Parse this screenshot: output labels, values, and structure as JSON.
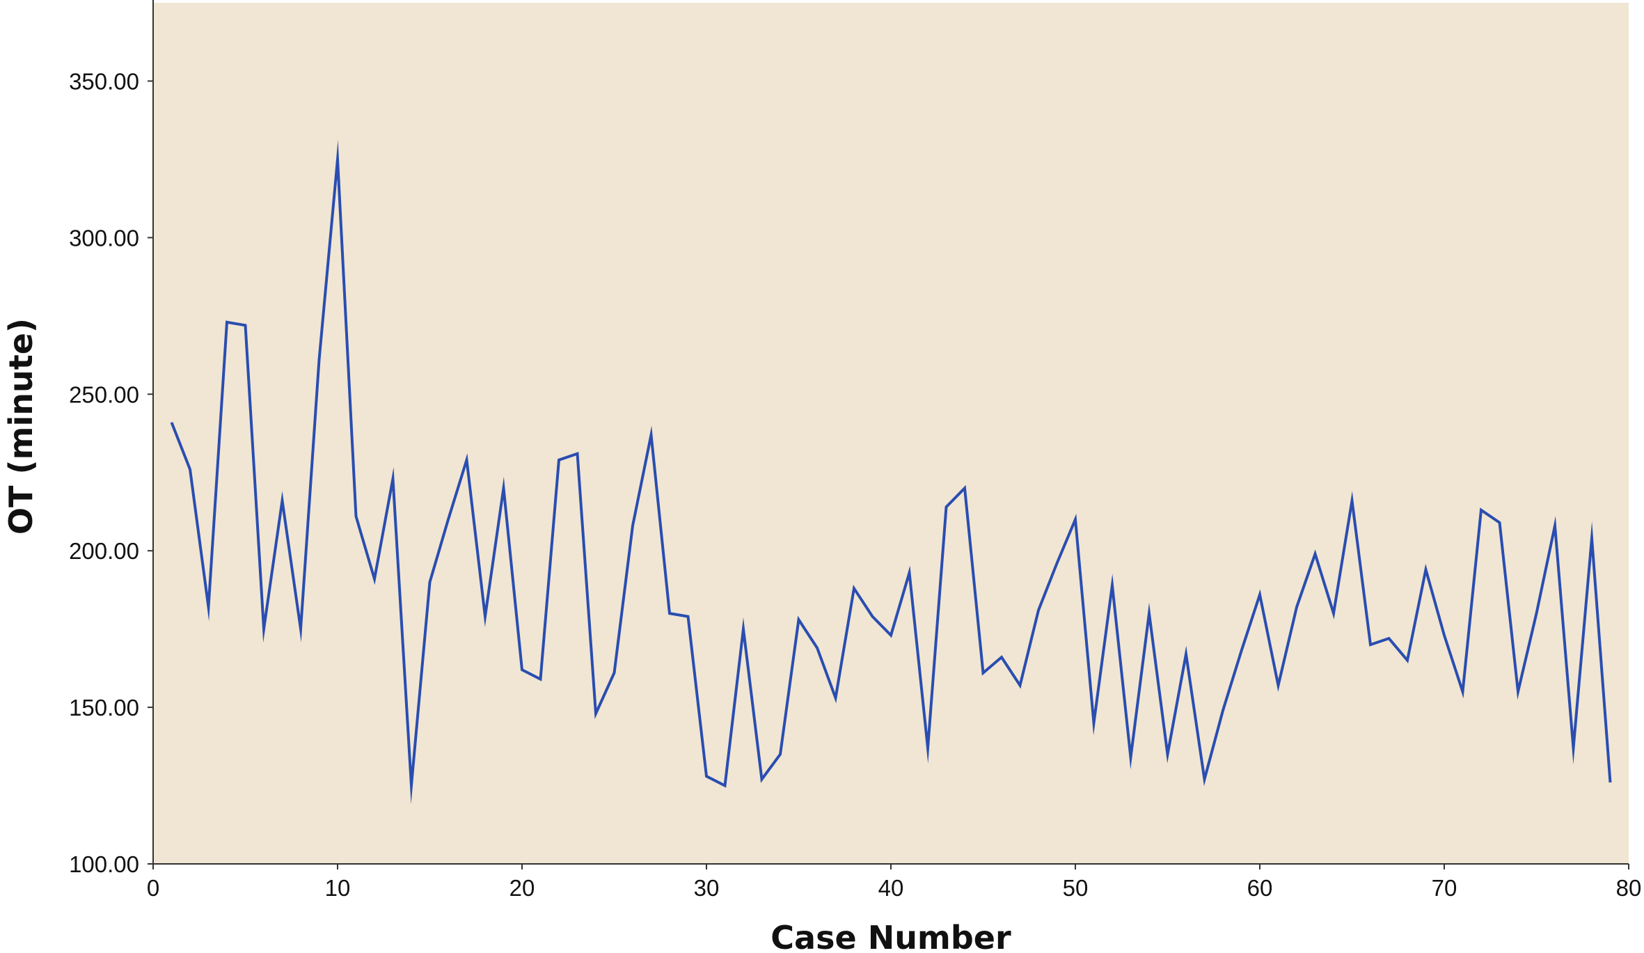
{
  "chart_data": {
    "type": "line",
    "xlabel": "Case Number",
    "ylabel": "OT (minute)",
    "xlim": [
      0,
      80
    ],
    "ylim": [
      100,
      375
    ],
    "xticks": [
      0,
      10,
      20,
      30,
      40,
      50,
      60,
      70,
      80
    ],
    "xtick_labels": [
      "0",
      "10",
      "20",
      "30",
      "40",
      "50",
      "60",
      "70",
      "80"
    ],
    "yticks": [
      100,
      150,
      200,
      250,
      300,
      350
    ],
    "ytick_labels": [
      "100.00",
      "150.00",
      "200.00",
      "250.00",
      "300.00",
      "350.00"
    ],
    "grid": false,
    "colors": {
      "plot_background": "#f0e6d3",
      "line": "#2a4db0",
      "axis": "#333333"
    },
    "series": [
      {
        "x": [
          1,
          2,
          3,
          4,
          5,
          6,
          7,
          8,
          9,
          10,
          11,
          12,
          13,
          14,
          15,
          16,
          17,
          18,
          19,
          20,
          21,
          22,
          23,
          24,
          25,
          26,
          27,
          28,
          29,
          30,
          31,
          32,
          33,
          34,
          35,
          36,
          37,
          38,
          39,
          40,
          41,
          42,
          43,
          44,
          45,
          46,
          47,
          48,
          49,
          50,
          51,
          52,
          53,
          54,
          55,
          56,
          57,
          58,
          59,
          60,
          61,
          62,
          63,
          64,
          65,
          66,
          67,
          68,
          69,
          70,
          71,
          72,
          73,
          74,
          75,
          76,
          77,
          78,
          79
        ],
        "values": [
          241,
          226,
          182,
          273,
          272,
          175,
          216,
          175,
          261,
          325,
          211,
          191,
          223,
          125,
          190,
          210,
          229,
          179,
          220,
          162,
          159,
          229,
          231,
          148,
          161,
          208,
          237,
          180,
          179,
          128,
          125,
          175,
          127,
          135,
          178,
          169,
          153,
          188,
          179,
          173,
          193,
          137,
          214,
          220,
          161,
          166,
          157,
          181,
          196,
          210,
          145,
          189,
          134,
          180,
          135,
          167,
          127,
          149,
          168,
          186,
          157,
          182,
          199,
          180,
          216,
          170,
          172,
          165,
          194,
          173,
          155,
          213,
          209,
          155,
          180,
          208,
          137,
          204,
          126
        ]
      }
    ]
  }
}
